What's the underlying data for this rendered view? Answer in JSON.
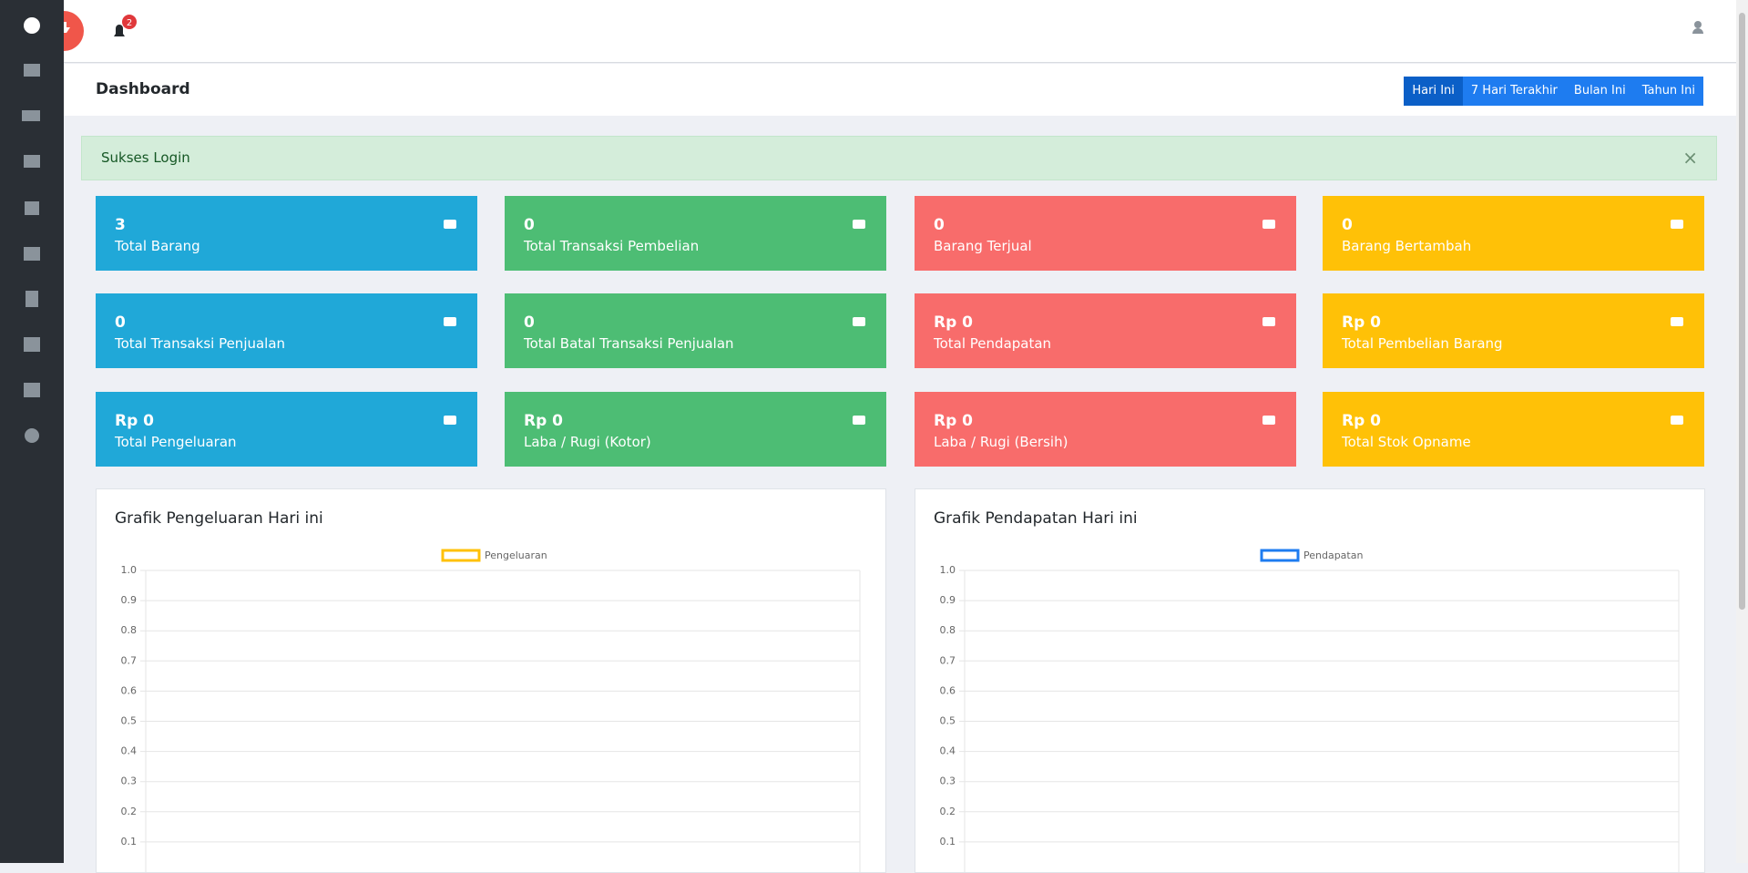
{
  "topbar": {
    "notification_count": "2"
  },
  "header": {
    "title": "Dashboard",
    "buttons": [
      "Hari Ini",
      "7 Hari Terakhir",
      "Bulan Ini",
      "Tahun Ini"
    ]
  },
  "alert": {
    "message": "Sukses Login"
  },
  "cards": [
    {
      "value": "3",
      "label": "Total Barang"
    },
    {
      "value": "0",
      "label": "Total Transaksi Pembelian"
    },
    {
      "value": "0",
      "label": "Barang Terjual"
    },
    {
      "value": "0",
      "label": "Barang Bertambah"
    },
    {
      "value": "0",
      "label": "Total Transaksi Penjualan"
    },
    {
      "value": "0",
      "label": "Total Batal Transaksi Penjualan"
    },
    {
      "value": "Rp 0",
      "label": "Total Pendapatan"
    },
    {
      "value": "Rp 0",
      "label": "Total Pembelian Barang"
    },
    {
      "value": "Rp 0",
      "label": "Total Pengeluaran"
    },
    {
      "value": "Rp 0",
      "label": "Laba / Rugi (Kotor)"
    },
    {
      "value": "Rp 0",
      "label": "Laba / Rugi (Bersih)"
    },
    {
      "value": "Rp 0",
      "label": "Total Stok Opname"
    }
  ],
  "chart_data": [
    {
      "type": "line",
      "title": "Grafik Pengeluaran Hari ini",
      "categories": [],
      "series": [
        {
          "name": "Pengeluaran",
          "color": "#ffc107",
          "values": []
        }
      ],
      "ylim": [
        0,
        1
      ],
      "yticks": [
        0.1,
        0.2,
        0.3,
        0.4,
        0.5,
        0.6,
        0.7,
        0.8,
        0.9,
        {
          "value": 1,
          "label": "1.0"
        }
      ],
      "grid": true
    },
    {
      "type": "line",
      "title": "Grafik Pendapatan Hari ini",
      "categories": [],
      "series": [
        {
          "name": "Pendapatan",
          "color": "#1e7cf0",
          "values": []
        }
      ],
      "ylim": [
        0,
        1
      ],
      "yticks": [
        0.1,
        0.2,
        0.3,
        0.4,
        0.5,
        0.6,
        0.7,
        0.8,
        0.9,
        {
          "value": 1,
          "label": "1.0"
        }
      ],
      "grid": true
    }
  ]
}
